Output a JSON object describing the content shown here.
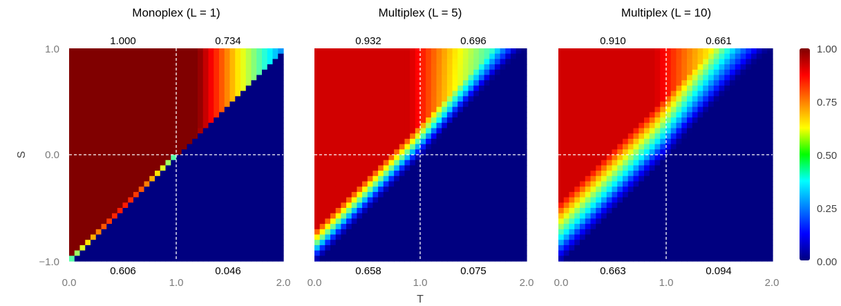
{
  "chart_data": {
    "type": "heatmap",
    "xlabel": "T",
    "ylabel": "S",
    "xlim": [
      0.0,
      2.0
    ],
    "ylim": [
      -1.0,
      1.0
    ],
    "x_ticks": [
      "0.0",
      "1.0",
      "2.0"
    ],
    "y_ticks": [
      "1.0",
      "0.0",
      "−1.0"
    ],
    "grid": false,
    "reference_lines": {
      "x": 1.0,
      "y": 0.0,
      "style": "white dashed"
    },
    "colorbar": {
      "range": [
        0.0,
        1.0
      ],
      "ticks": [
        "1.00",
        "0.75",
        "0.50",
        "0.25",
        "0.00"
      ],
      "colormap": "jet",
      "placement": "right"
    },
    "panels": [
      {
        "title": "Monoplex  (L = 1)",
        "layers": 1,
        "quadrant_labels": {
          "top_left": "1.000",
          "top_right": "0.734",
          "bottom_left": "0.606",
          "bottom_right": "0.046"
        }
      },
      {
        "title": "Multiplex  (L = 5)",
        "layers": 5,
        "quadrant_labels": {
          "top_left": "0.932",
          "top_right": "0.696",
          "bottom_left": "0.658",
          "bottom_right": "0.075"
        }
      },
      {
        "title": "Multiplex  (L = 10)",
        "layers": 10,
        "quadrant_labels": {
          "top_left": "0.910",
          "top_right": "0.661",
          "bottom_left": "0.663",
          "bottom_right": "0.094"
        }
      }
    ]
  }
}
